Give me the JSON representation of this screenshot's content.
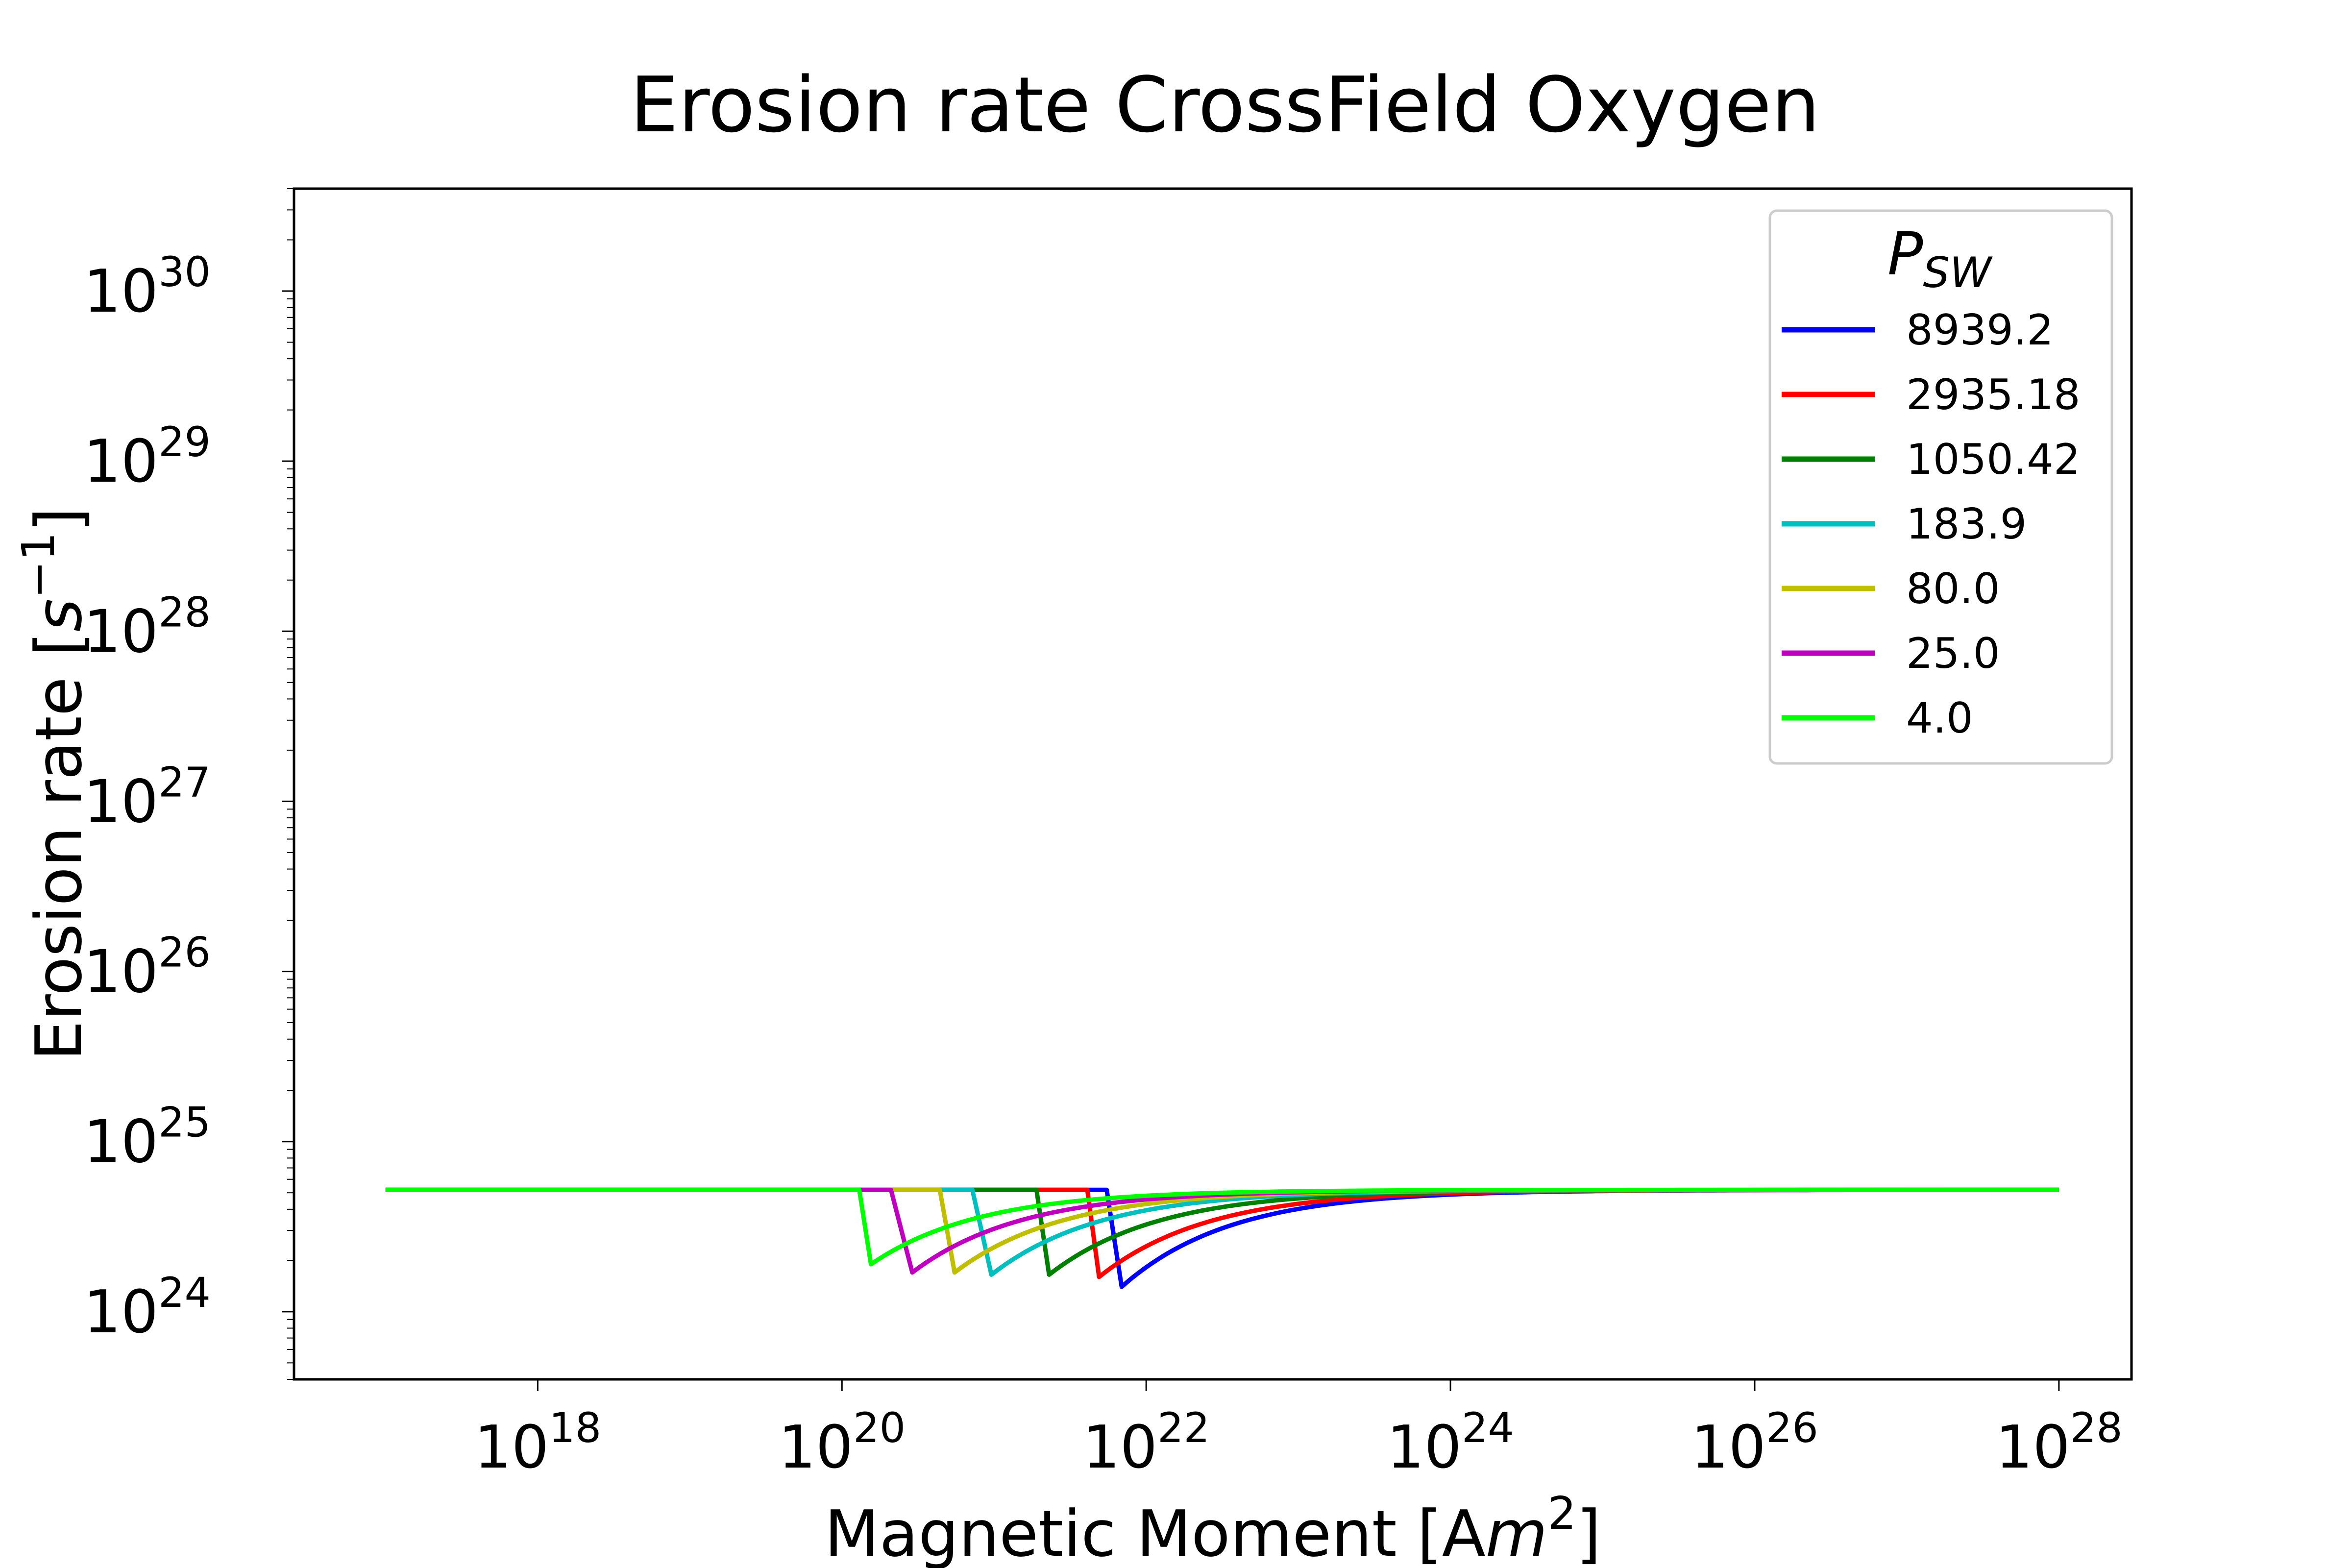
{
  "chart_data": {
    "type": "line",
    "title": "Erosion rate CrossField Oxygen",
    "xlabel": "Magnetic Moment [A",
    "xlabel_math": "m",
    "xlabel_sup": "2",
    "xlabel_end": "]",
    "ylabel": "Erosion rate [",
    "ylabel_math": "s",
    "ylabel_sup": "−1",
    "ylabel_end": "]",
    "x_scale": "log",
    "y_scale": "log",
    "xlim": [
      2.5e+16,
      3e+28
    ],
    "ylim": [
      4e+23,
      4e+30
    ],
    "x_ticks": [
      {
        "base": "10",
        "exp": "18",
        "value": 1e+18
      },
      {
        "base": "10",
        "exp": "20",
        "value": 1e+20
      },
      {
        "base": "10",
        "exp": "22",
        "value": 1e+22
      },
      {
        "base": "10",
        "exp": "24",
        "value": 1e+24
      },
      {
        "base": "10",
        "exp": "26",
        "value": 1e+26
      },
      {
        "base": "10",
        "exp": "28",
        "value": 1e+28
      }
    ],
    "y_ticks": [
      {
        "base": "10",
        "exp": "24",
        "value": 1e+24
      },
      {
        "base": "10",
        "exp": "25",
        "value": 1e+25
      },
      {
        "base": "10",
        "exp": "26",
        "value": 1e+26
      },
      {
        "base": "10",
        "exp": "27",
        "value": 1e+27
      },
      {
        "base": "10",
        "exp": "28",
        "value": 1e+28
      },
      {
        "base": "10",
        "exp": "29",
        "value": 1e+29
      },
      {
        "base": "10",
        "exp": "30",
        "value": 1e+30
      }
    ],
    "grid": false,
    "legend": {
      "title": "P",
      "title_sub": "SW",
      "placement": "top-right"
    },
    "plateau": 5.2e+24,
    "x_start": 1e+17,
    "x_end": 1e+28,
    "series": [
      {
        "name": "8939.2",
        "color": "#0000ff",
        "x_drop": 5.5e+21,
        "x_min": 6.9e+21,
        "y_min": 1.4e+24
      },
      {
        "name": "2935.18",
        "color": "#ff0000",
        "x_drop": 4.1e+21,
        "x_min": 4.9e+21,
        "y_min": 1.6e+24
      },
      {
        "name": "1050.42",
        "color": "#008000",
        "x_drop": 1.9e+21,
        "x_min": 2.3e+21,
        "y_min": 1.65e+24
      },
      {
        "name": "183.9",
        "color": "#00bfbf",
        "x_drop": 7.2e+20,
        "x_min": 9.6e+20,
        "y_min": 1.65e+24
      },
      {
        "name": "80.0",
        "color": "#bfbf00",
        "x_drop": 4.4e+20,
        "x_min": 5.5e+20,
        "y_min": 1.7e+24
      },
      {
        "name": "25.0",
        "color": "#bf00bf",
        "x_drop": 2.1e+20,
        "x_min": 2.9e+20,
        "y_min": 1.7e+24
      },
      {
        "name": "4.0",
        "color": "#00ff00",
        "x_drop": 1.3e+20,
        "x_min": 1.55e+20,
        "y_min": 1.9e+24
      }
    ]
  }
}
